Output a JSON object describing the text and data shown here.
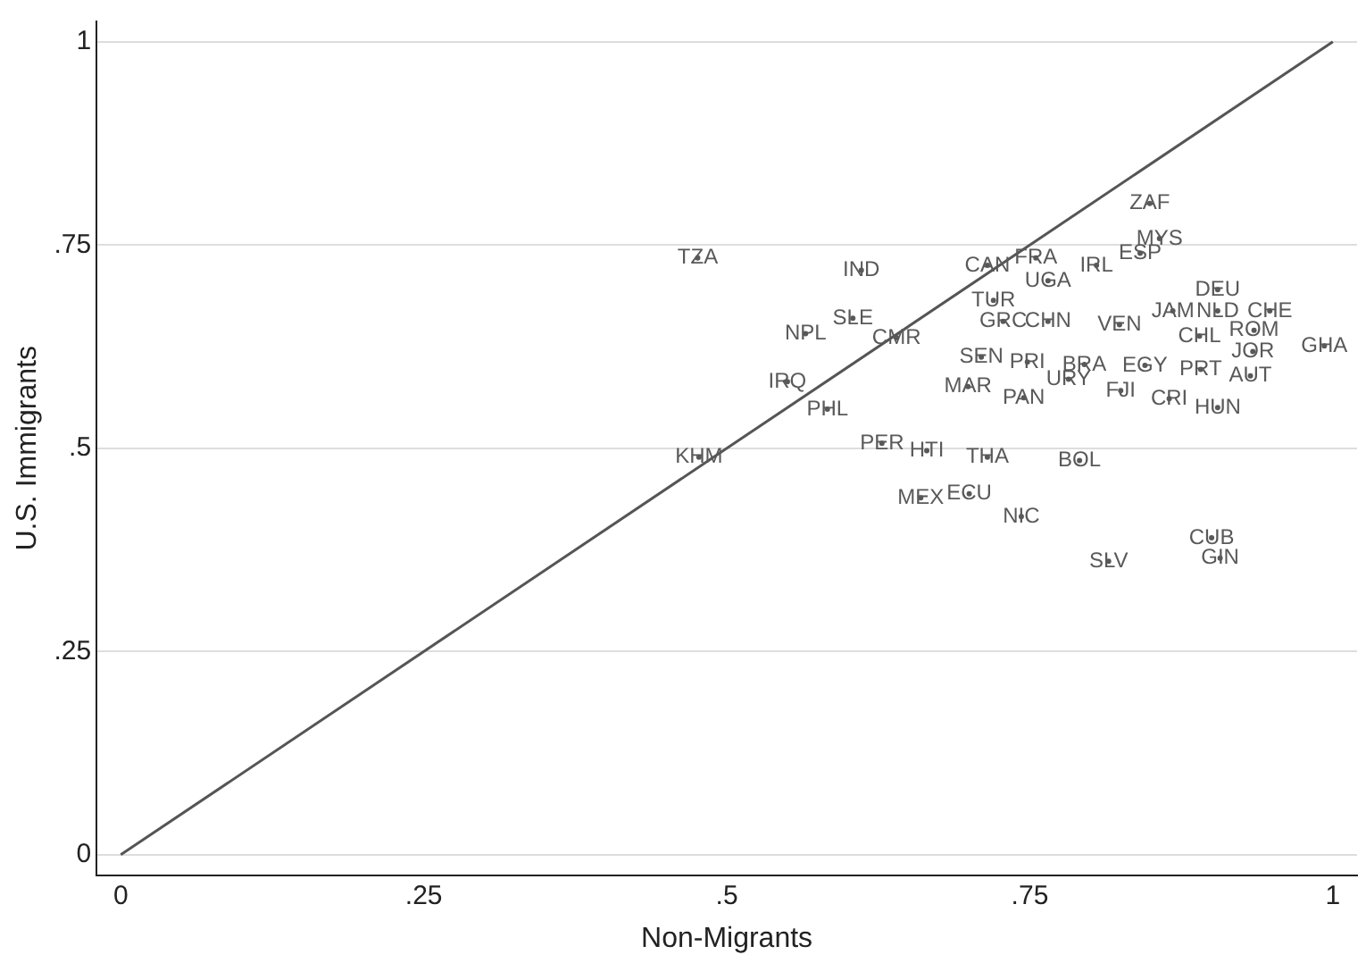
{
  "chart_data": {
    "type": "scatter",
    "xlabel": "Non-Migrants",
    "ylabel": "U.S. Immigrants",
    "xlim": [
      -0.02,
      1.02
    ],
    "ylim": [
      -0.025,
      1.025
    ],
    "xticks": [
      0,
      {
        "value": 0.25,
        "label": ".25"
      },
      {
        "value": 0.5,
        "label": ".5"
      },
      {
        "value": 0.75,
        "label": ".75"
      },
      1
    ],
    "yticks": [
      0,
      {
        "value": 0.25,
        "label": ".25"
      },
      {
        "value": 0.5,
        "label": ".5"
      },
      {
        "value": 0.75,
        "label": ".75"
      },
      1
    ],
    "grid": "y",
    "legend": false,
    "series": [
      {
        "type": "scatter",
        "color": "#595959",
        "value_labels": [
          "TZA",
          "IND",
          "CAN",
          "FRA",
          "UGA",
          "IRL",
          "ESP",
          "ZAF",
          "MYS",
          "TUR",
          "GRC",
          "CHN",
          "VEN",
          "JAM",
          "NLD",
          "DEU",
          "CHE",
          "ROM",
          "CHL",
          "JOR",
          "GHA",
          "NPL",
          "SLE",
          "CMR",
          "SEN",
          "PRI",
          "URY",
          "BRA",
          "EGY",
          "PRT",
          "AUT",
          "FJI",
          "MAR",
          "PAN",
          "CRI",
          "HUN",
          "IRQ",
          "PHL",
          "KHM",
          "PER",
          "HTI",
          "THA",
          "BOL",
          "MEX",
          "ECU",
          "NIC",
          "SLV",
          "CUB",
          "GIN"
        ],
        "x": [
          0.476,
          0.611,
          0.715,
          0.755,
          0.765,
          0.805,
          0.841,
          0.849,
          0.857,
          0.72,
          0.728,
          0.765,
          0.824,
          0.868,
          0.905,
          0.905,
          0.948,
          0.935,
          0.89,
          0.934,
          0.993,
          0.565,
          0.604,
          0.64,
          0.71,
          0.748,
          0.782,
          0.795,
          0.845,
          0.891,
          0.932,
          0.825,
          0.699,
          0.745,
          0.865,
          0.905,
          0.55,
          0.583,
          0.477,
          0.628,
          0.665,
          0.715,
          0.791,
          0.66,
          0.7,
          0.743,
          0.815,
          0.9,
          0.907
        ],
        "values": [
          0.734,
          0.719,
          0.725,
          0.734,
          0.706,
          0.725,
          0.74,
          0.801,
          0.758,
          0.682,
          0.656,
          0.656,
          0.652,
          0.669,
          0.669,
          0.695,
          0.669,
          0.645,
          0.638,
          0.619,
          0.626,
          0.641,
          0.66,
          0.636,
          0.612,
          0.606,
          0.585,
          0.603,
          0.602,
          0.597,
          0.589,
          0.571,
          0.576,
          0.562,
          0.561,
          0.55,
          0.582,
          0.548,
          0.489,
          0.506,
          0.497,
          0.489,
          0.485,
          0.439,
          0.444,
          0.416,
          0.361,
          0.39,
          0.365
        ]
      },
      {
        "type": "line",
        "color": "#555555",
        "x": [
          0,
          1
        ],
        "values": [
          0,
          1
        ]
      }
    ]
  }
}
